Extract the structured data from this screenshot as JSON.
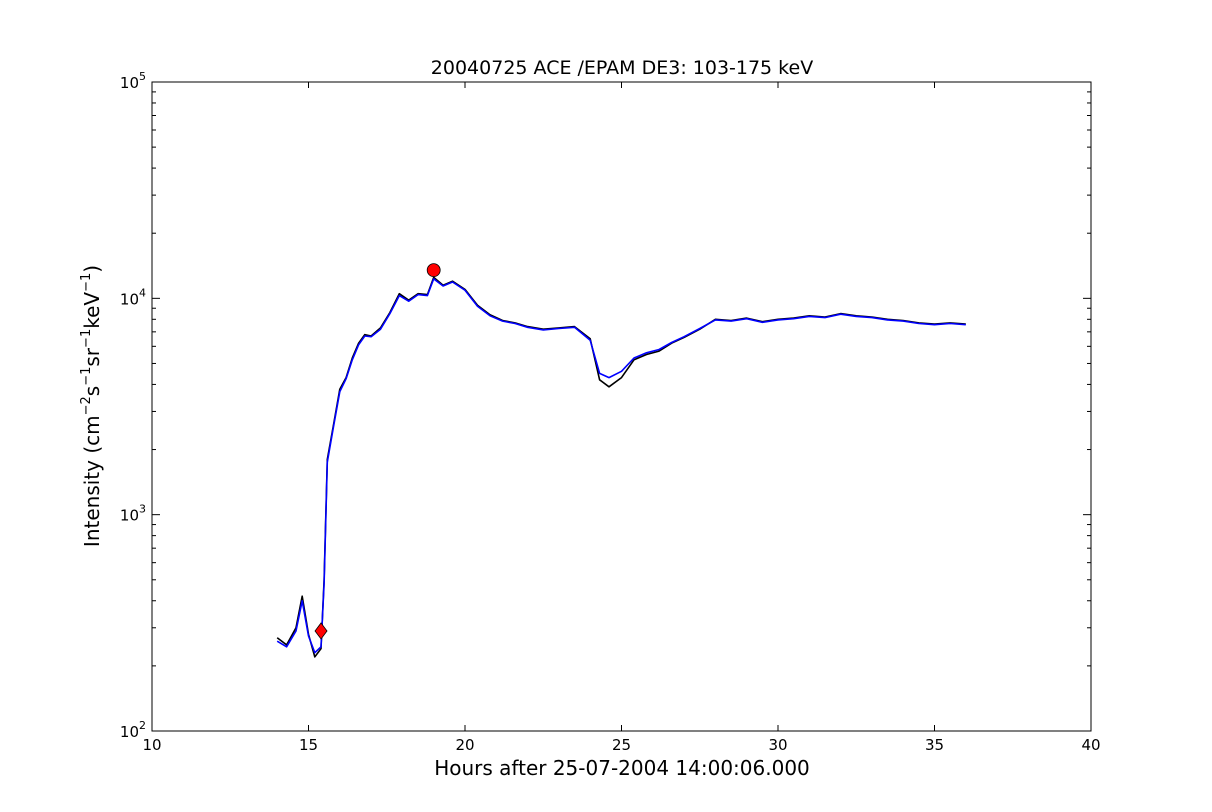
{
  "chart_data": {
    "type": "line",
    "title": "20040725 ACE /EPAM DE3: 103-175 keV",
    "xlabel": "Hours after 25-07-2004 14:00:06.000",
    "ylabel_main": "Intensity (cm",
    "ylabel_parts": [
      "Intensity (cm",
      "−2",
      "s",
      "−1",
      "sr",
      "−1",
      "keV",
      "−1",
      ")"
    ],
    "xlim": [
      10,
      40
    ],
    "ylim": [
      100,
      100000
    ],
    "yscale": "log",
    "grid": false,
    "x_ticks": [
      "10",
      "15",
      "20",
      "25",
      "30",
      "35",
      "40"
    ],
    "y_ticks": [
      {
        "base": "10",
        "exp": "2"
      },
      {
        "base": "10",
        "exp": "3"
      },
      {
        "base": "10",
        "exp": "4"
      },
      {
        "base": "10",
        "exp": "5"
      }
    ],
    "series": [
      {
        "color": "#000000",
        "x": [
          14.0,
          14.3,
          14.6,
          14.8,
          15.0,
          15.2,
          15.4,
          15.5,
          15.6,
          15.8,
          16.0,
          16.2,
          16.4,
          16.6,
          16.8,
          17.0,
          17.3,
          17.6,
          17.9,
          18.2,
          18.5,
          18.8,
          19.0,
          19.3,
          19.6,
          20.0,
          20.4,
          20.8,
          21.2,
          21.6,
          22.0,
          22.5,
          23.0,
          23.5,
          24.0,
          24.3,
          24.6,
          25.0,
          25.4,
          25.8,
          26.2,
          26.6,
          27.0,
          27.5,
          28.0,
          28.5,
          29.0,
          29.5,
          30.0,
          30.5,
          31.0,
          31.5,
          32.0,
          32.5,
          33.0,
          33.5,
          34.0,
          34.5,
          35.0,
          35.5,
          36.0
        ],
        "y": [
          270,
          250,
          300,
          420,
          280,
          220,
          240,
          500,
          1800,
          2600,
          3800,
          4300,
          5300,
          6200,
          6800,
          6700,
          7300,
          8600,
          10500,
          9800,
          10500,
          10400,
          12500,
          11500,
          12000,
          11000,
          9300,
          8400,
          7900,
          7700,
          7400,
          7200,
          7300,
          7400,
          6500,
          4200,
          3900,
          4300,
          5200,
          5500,
          5700,
          6200,
          6600,
          7200,
          8000,
          7900,
          8100,
          7800,
          8000,
          8100,
          8300,
          8200,
          8500,
          8300,
          8200,
          8000,
          7900,
          7700,
          7600,
          7700,
          7600
        ]
      },
      {
        "color": "#0000ff",
        "x": [
          14.0,
          14.3,
          14.6,
          14.8,
          15.0,
          15.2,
          15.4,
          15.5,
          15.6,
          15.8,
          16.0,
          16.2,
          16.4,
          16.6,
          16.8,
          17.0,
          17.3,
          17.6,
          17.9,
          18.2,
          18.5,
          18.8,
          19.0,
          19.3,
          19.6,
          20.0,
          20.4,
          20.8,
          21.2,
          21.6,
          22.0,
          22.5,
          23.0,
          23.5,
          24.0,
          24.3,
          24.6,
          25.0,
          25.4,
          25.8,
          26.2,
          26.6,
          27.0,
          27.5,
          28.0,
          28.5,
          29.0,
          29.5,
          30.0,
          30.5,
          31.0,
          31.5,
          32.0,
          32.5,
          33.0,
          33.5,
          34.0,
          34.5,
          35.0,
          35.5,
          36.0
        ],
        "y": [
          260,
          245,
          290,
          400,
          275,
          230,
          245,
          480,
          1750,
          2550,
          3700,
          4250,
          5200,
          6100,
          6700,
          6650,
          7200,
          8500,
          10300,
          9700,
          10400,
          10300,
          12300,
          11400,
          11900,
          10900,
          9200,
          8300,
          7850,
          7650,
          7350,
          7150,
          7250,
          7350,
          6400,
          4500,
          4300,
          4600,
          5300,
          5600,
          5800,
          6250,
          6650,
          7250,
          7950,
          7850,
          8050,
          7750,
          7950,
          8050,
          8250,
          8150,
          8450,
          8250,
          8150,
          7950,
          7850,
          7650,
          7550,
          7650,
          7550
        ]
      }
    ],
    "markers": [
      {
        "shape": "diamond",
        "x": 15.4,
        "y": 290,
        "color": "#ff0000"
      },
      {
        "shape": "circle",
        "x": 19.0,
        "y": 13500,
        "color": "#ff0000"
      }
    ]
  }
}
